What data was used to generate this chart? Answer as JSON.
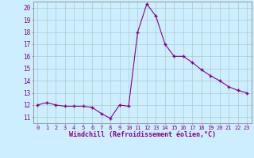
{
  "x": [
    0,
    1,
    2,
    3,
    4,
    5,
    6,
    7,
    8,
    9,
    10,
    11,
    12,
    13,
    14,
    15,
    16,
    17,
    18,
    19,
    20,
    21,
    22,
    23
  ],
  "y": [
    12.0,
    12.2,
    12.0,
    11.9,
    11.9,
    11.9,
    11.8,
    11.3,
    10.9,
    12.0,
    11.9,
    18.0,
    20.3,
    19.3,
    17.0,
    16.0,
    16.0,
    15.5,
    14.9,
    14.4,
    14.0,
    13.5,
    13.2,
    13.0
  ],
  "ylim": [
    10.5,
    20.5
  ],
  "yticks": [
    11,
    12,
    13,
    14,
    15,
    16,
    17,
    18,
    19,
    20
  ],
  "xlabel": "Windchill (Refroidissement éolien,°C)",
  "line_color": "#880088",
  "marker_color": "#880088",
  "bg_color": "#cceeff",
  "grid_color": "#aacccc",
  "tick_color": "#880088",
  "label_color": "#880088",
  "spine_color": "#888888"
}
